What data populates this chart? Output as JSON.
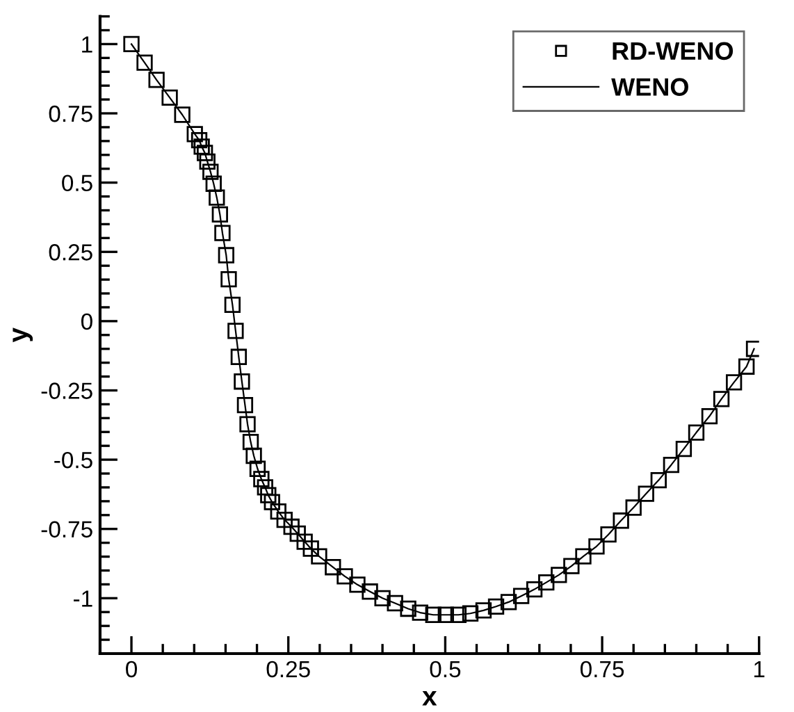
{
  "chart_data": {
    "type": "line",
    "xlabel": "x",
    "ylabel": "y",
    "xlim": [
      -0.05,
      1.0
    ],
    "ylim": [
      -1.2,
      1.1
    ],
    "xticks": [
      0,
      0.25,
      0.5,
      0.75,
      1
    ],
    "yticks": [
      -1,
      -0.75,
      -0.5,
      -0.25,
      0,
      0.25,
      0.5,
      0.75,
      1
    ],
    "legend": "top right",
    "grid": false,
    "x": [
      0,
      0.021,
      0.04,
      0.061,
      0.081,
      0.101,
      0.108,
      0.112,
      0.117,
      0.121,
      0.126,
      0.131,
      0.136,
      0.141,
      0.145,
      0.151,
      0.155,
      0.161,
      0.166,
      0.171,
      0.176,
      0.181,
      0.185,
      0.19,
      0.195,
      0.201,
      0.207,
      0.213,
      0.218,
      0.224,
      0.234,
      0.244,
      0.255,
      0.265,
      0.276,
      0.286,
      0.299,
      0.321,
      0.34,
      0.36,
      0.38,
      0.4,
      0.42,
      0.441,
      0.46,
      0.481,
      0.501,
      0.521,
      0.54,
      0.561,
      0.581,
      0.601,
      0.621,
      0.642,
      0.661,
      0.681,
      0.701,
      0.72,
      0.741,
      0.76,
      0.78,
      0.8,
      0.82,
      0.84,
      0.86,
      0.88,
      0.9,
      0.921,
      0.94,
      0.96,
      0.98,
      0.992
    ],
    "series": [
      {
        "name": "RD-WENO",
        "type": "scatter",
        "marker": "square",
        "color": "#000000",
        "values": [
          1,
          0.933,
          0.871,
          0.807,
          0.745,
          0.675,
          0.653,
          0.63,
          0.607,
          0.576,
          0.539,
          0.496,
          0.446,
          0.385,
          0.318,
          0.238,
          0.151,
          0.059,
          -0.035,
          -0.129,
          -0.218,
          -0.303,
          -0.372,
          -0.436,
          -0.486,
          -0.533,
          -0.57,
          -0.6,
          -0.628,
          -0.653,
          -0.687,
          -0.717,
          -0.742,
          -0.767,
          -0.796,
          -0.821,
          -0.849,
          -0.888,
          -0.921,
          -0.951,
          -0.976,
          -1.0,
          -1.018,
          -1.038,
          -1.052,
          -1.06,
          -1.06,
          -1.06,
          -1.055,
          -1.044,
          -1.03,
          -1.014,
          -0.992,
          -0.968,
          -0.943,
          -0.916,
          -0.884,
          -0.849,
          -0.813,
          -0.77,
          -0.72,
          -0.673,
          -0.623,
          -0.574,
          -0.519,
          -0.461,
          -0.402,
          -0.343,
          -0.281,
          -0.221,
          -0.164,
          -0.1
        ]
      },
      {
        "name": "WENO",
        "color": "#000000",
        "values": [
          1,
          0.933,
          0.871,
          0.807,
          0.745,
          0.675,
          0.653,
          0.63,
          0.607,
          0.576,
          0.539,
          0.496,
          0.446,
          0.385,
          0.318,
          0.238,
          0.151,
          0.059,
          -0.035,
          -0.129,
          -0.218,
          -0.303,
          -0.372,
          -0.436,
          -0.486,
          -0.533,
          -0.57,
          -0.6,
          -0.628,
          -0.653,
          -0.687,
          -0.717,
          -0.742,
          -0.767,
          -0.796,
          -0.821,
          -0.849,
          -0.888,
          -0.921,
          -0.951,
          -0.976,
          -1.0,
          -1.018,
          -1.038,
          -1.052,
          -1.06,
          -1.06,
          -1.06,
          -1.055,
          -1.044,
          -1.03,
          -1.014,
          -0.992,
          -0.968,
          -0.943,
          -0.916,
          -0.884,
          -0.849,
          -0.813,
          -0.77,
          -0.72,
          -0.673,
          -0.623,
          -0.574,
          -0.519,
          -0.461,
          -0.402,
          -0.343,
          -0.281,
          -0.221,
          -0.164,
          -0.1
        ]
      }
    ]
  }
}
